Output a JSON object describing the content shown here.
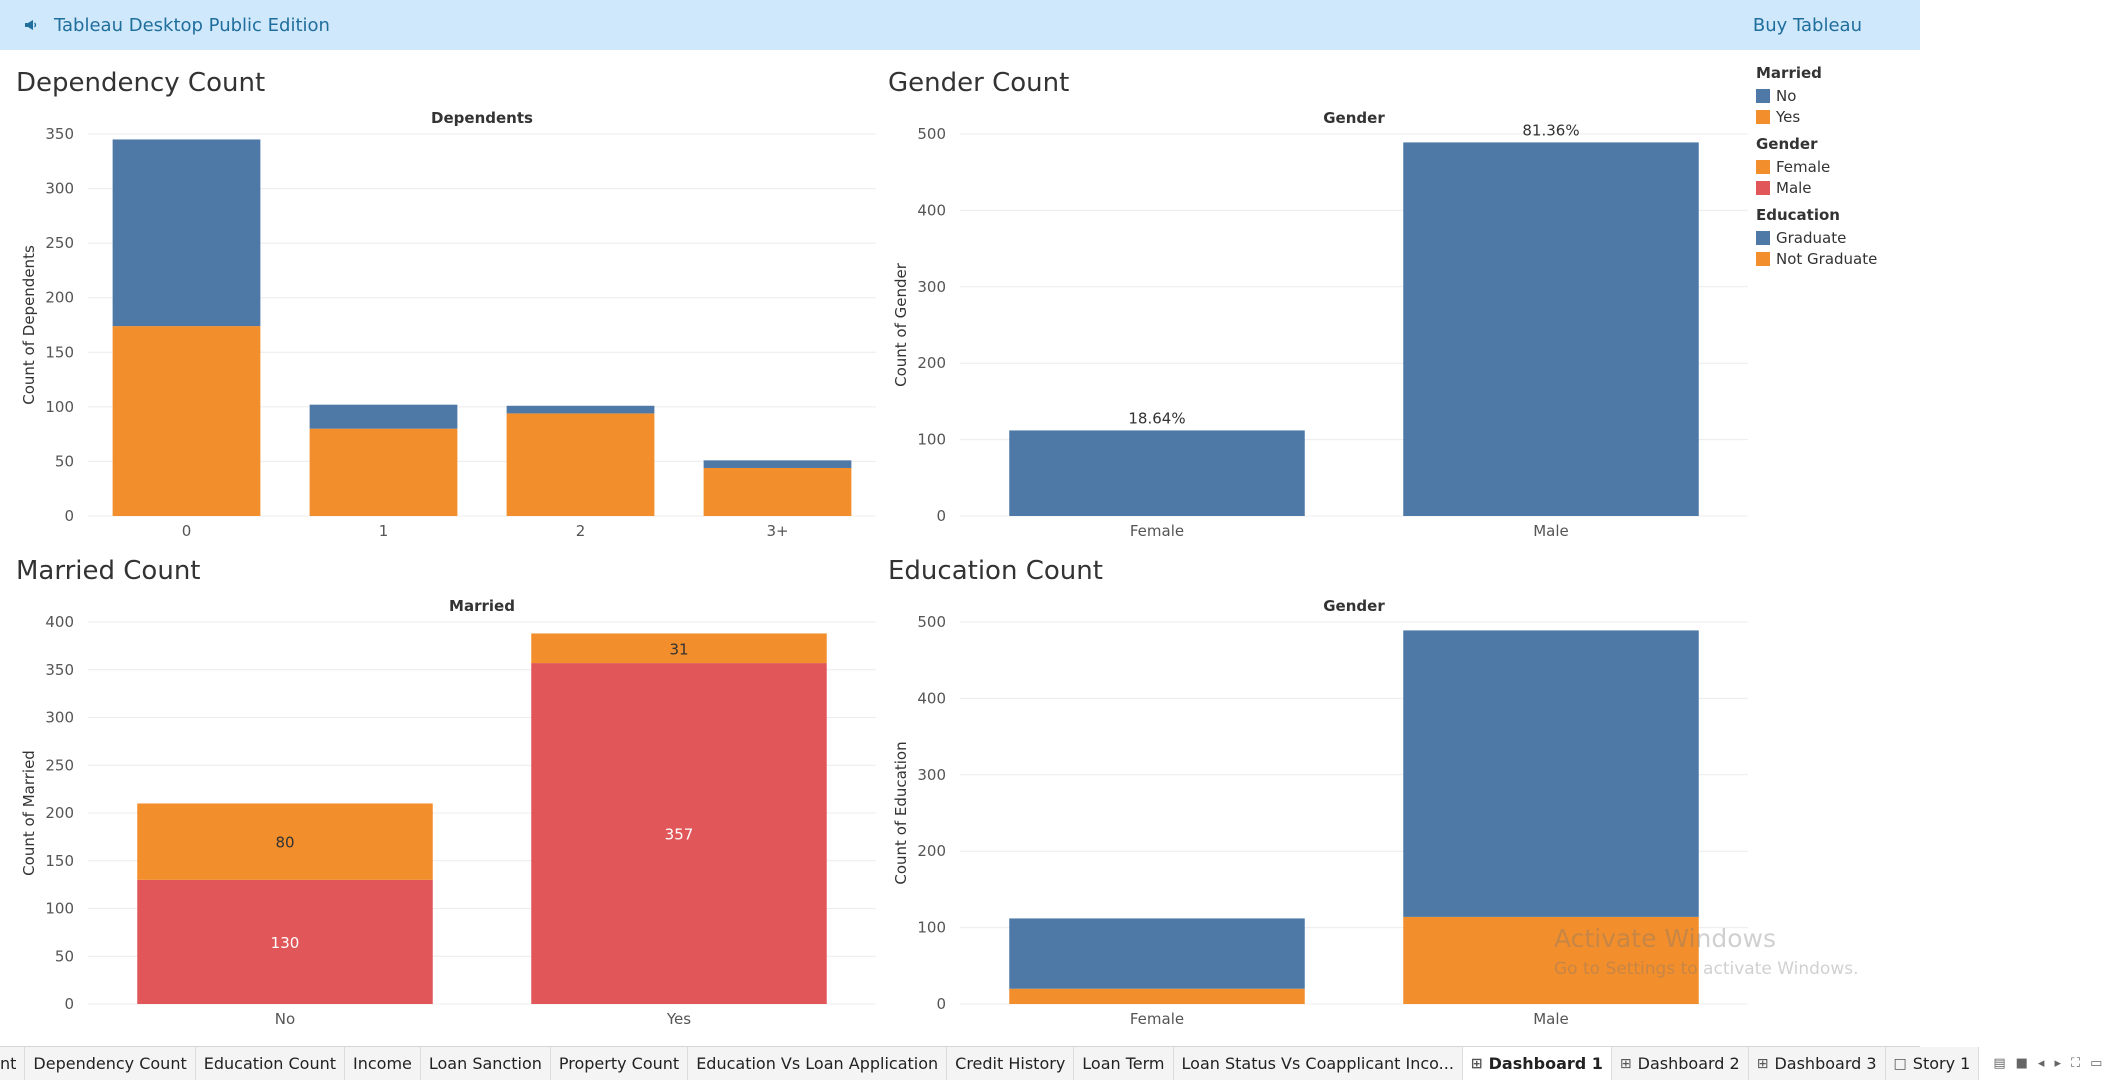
{
  "app": {
    "title": "Tableau Desktop Public Edition",
    "buy_label": "Buy Tableau",
    "icons": {
      "product": "megaphone-icon"
    }
  },
  "colors": {
    "blue": "#4e79a7",
    "orange": "#f28e2b",
    "red": "#e15759"
  },
  "panels": {
    "dependency": {
      "title": "Dependency Count"
    },
    "gender": {
      "title": "Gender Count"
    },
    "married": {
      "title": "Married Count"
    },
    "education": {
      "title": "Education Count"
    }
  },
  "legend": [
    {
      "title": "Married",
      "items": [
        {
          "label": "No",
          "color": "#4e79a7"
        },
        {
          "label": "Yes",
          "color": "#f28e2b"
        }
      ]
    },
    {
      "title": "Gender",
      "items": [
        {
          "label": "Female",
          "color": "#f28e2b"
        },
        {
          "label": "Male",
          "color": "#e15759"
        }
      ]
    },
    {
      "title": "Education",
      "items": [
        {
          "label": "Graduate",
          "color": "#4e79a7"
        },
        {
          "label": "Not Graduate",
          "color": "#f28e2b"
        }
      ]
    }
  ],
  "chart_data": [
    {
      "id": "dependency",
      "type": "bar",
      "stacked": true,
      "title": "Dependency Count",
      "header": "Dependents",
      "ylabel": "Count of Dependents",
      "categories": [
        "0",
        "1",
        "2",
        "3+"
      ],
      "series": [
        {
          "name": "Yes",
          "color": "#f28e2b",
          "values": [
            174,
            80,
            94,
            44
          ]
        },
        {
          "name": "No",
          "color": "#4e79a7",
          "values": [
            171,
            22,
            7,
            7
          ]
        }
      ],
      "yticks": [
        0,
        50,
        100,
        150,
        200,
        250,
        300,
        350
      ],
      "ylim": [
        0,
        350
      ],
      "grid": true
    },
    {
      "id": "gender",
      "type": "bar",
      "title": "Gender Count",
      "header": "Gender",
      "ylabel": "Count of Gender",
      "categories": [
        "Female",
        "Male"
      ],
      "series": [
        {
          "name": "",
          "color": "#4e79a7",
          "values": [
            112,
            489
          ],
          "labels": [
            "18.64%",
            "81.36%"
          ]
        }
      ],
      "yticks": [
        0,
        100,
        200,
        300,
        400,
        500
      ],
      "ylim": [
        0,
        500
      ],
      "grid": true
    },
    {
      "id": "married",
      "type": "bar",
      "stacked": true,
      "title": "Married Count",
      "header": "Married",
      "ylabel": "Count of Married",
      "categories": [
        "No",
        "Yes"
      ],
      "series": [
        {
          "name": "Male",
          "color": "#e15759",
          "values": [
            130,
            357
          ],
          "labels": [
            "130",
            "357"
          ],
          "label_color": "#ffffff"
        },
        {
          "name": "Female",
          "color": "#f28e2b",
          "values": [
            80,
            31
          ],
          "labels": [
            "80",
            "31"
          ],
          "label_color": "#333333"
        }
      ],
      "yticks": [
        0,
        50,
        100,
        150,
        200,
        250,
        300,
        350,
        400
      ],
      "ylim": [
        0,
        400
      ],
      "grid": true
    },
    {
      "id": "education",
      "type": "bar",
      "stacked": true,
      "title": "Education Count",
      "header": "Gender",
      "ylabel": "Count of Education",
      "categories": [
        "Female",
        "Male"
      ],
      "series": [
        {
          "name": "Not Graduate",
          "color": "#f28e2b",
          "values": [
            20,
            114
          ]
        },
        {
          "name": "Graduate",
          "color": "#4e79a7",
          "values": [
            92,
            375
          ]
        }
      ],
      "yticks": [
        0,
        100,
        200,
        300,
        400,
        500
      ],
      "ylim": [
        0,
        500
      ],
      "grid": true
    }
  ],
  "watermark": {
    "line1": "Activate Windows",
    "line2": "Go to Settings to activate Windows."
  },
  "tabs": [
    {
      "label": "nt",
      "icon": "",
      "active": false
    },
    {
      "label": "Dependency Count",
      "icon": "",
      "active": false
    },
    {
      "label": "Education Count",
      "icon": "",
      "active": false
    },
    {
      "label": "Income",
      "icon": "",
      "active": false
    },
    {
      "label": "Loan Sanction",
      "icon": "",
      "active": false
    },
    {
      "label": "Property Count",
      "icon": "",
      "active": false
    },
    {
      "label": "Education Vs Loan Application",
      "icon": "",
      "active": false
    },
    {
      "label": "Credit History",
      "icon": "",
      "active": false
    },
    {
      "label": "Loan Term",
      "icon": "",
      "active": false
    },
    {
      "label": "Loan Status Vs Coapplicant Inco...",
      "icon": "",
      "active": false
    },
    {
      "label": "Dashboard 1",
      "icon": "dashboard-icon",
      "active": true
    },
    {
      "label": "Dashboard 2",
      "icon": "dashboard-icon",
      "active": false
    },
    {
      "label": "Dashboard 3",
      "icon": "dashboard-icon",
      "active": false
    },
    {
      "label": "Story 1",
      "icon": "story-icon",
      "active": false
    }
  ],
  "nav_icons": [
    "sheet-sorter-icon",
    "filmstrip-icon",
    "prev-tab-icon",
    "next-tab-icon",
    "fullscreen-icon",
    "presentation-icon"
  ]
}
